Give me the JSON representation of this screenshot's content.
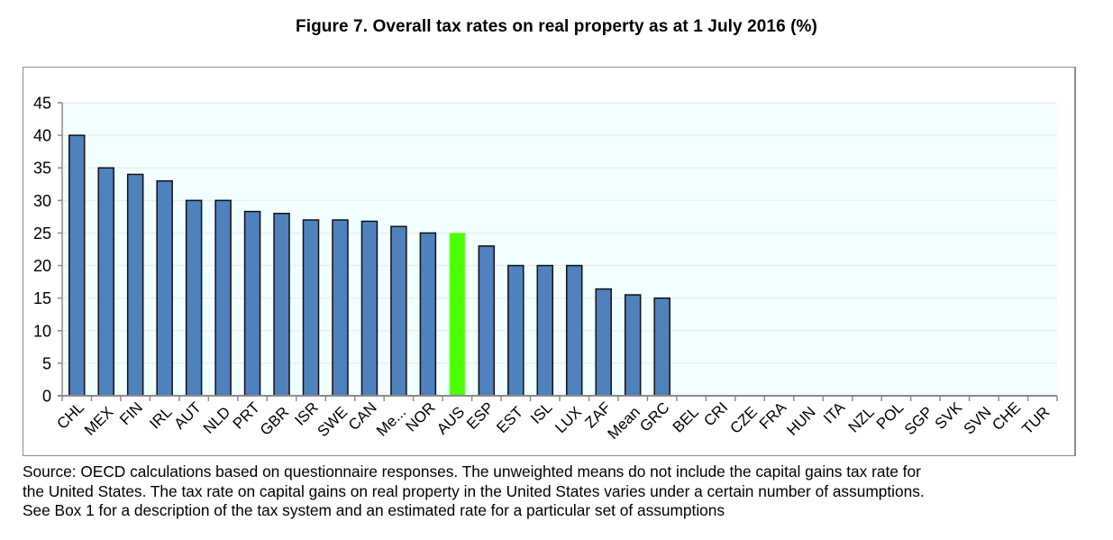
{
  "chart_data": {
    "type": "bar",
    "title": "Figure 7. Overall tax rates on real property as at 1 July 2016 (%)",
    "xlabel": "",
    "ylabel": "",
    "ylim": [
      0,
      45
    ],
    "yticks": [
      0,
      5,
      10,
      15,
      20,
      25,
      30,
      35,
      40,
      45
    ],
    "grid": true,
    "legend": "none",
    "categories": [
      "CHL",
      "MEX",
      "FIN",
      "IRL",
      "AUT",
      "NLD",
      "PRT",
      "GBR",
      "ISR",
      "SWE",
      "CAN",
      "Me...",
      "NOR",
      "AUS",
      "ESP",
      "EST",
      "ISL",
      "LUX",
      "ZAF",
      "Mean",
      "GRC",
      "BEL",
      "CRI",
      "CZE",
      "FRA",
      "HUN",
      "ITA",
      "NZL",
      "POL",
      "SGP",
      "SVK",
      "SVN",
      "CHE",
      "TUR"
    ],
    "values": [
      40,
      35,
      34,
      33,
      30,
      30,
      28.3,
      28,
      27,
      27,
      26.8,
      26,
      25,
      25,
      23,
      20,
      20,
      20,
      16.4,
      15.5,
      15,
      0,
      0,
      0,
      0,
      0,
      0,
      0,
      0,
      0,
      0,
      0,
      0,
      0
    ],
    "highlight": "AUS",
    "colors": {
      "bar": "#4F81BD",
      "bar_border": "#111111",
      "highlight": "#4CFF00",
      "plot_background": "#F2FFFF",
      "gridline": "#EDEDED",
      "axis": "#8C8C8C"
    }
  },
  "source_lines": [
    "Source: OECD calculations based on questionnaire responses. The unweighted means do not include the capital gains tax rate for",
    "the United States. The tax rate on capital gains on real property in the United States varies under a certain number of assumptions.",
    "See Box 1 for a description of the tax system and an estimated rate for a particular set of assumptions"
  ]
}
